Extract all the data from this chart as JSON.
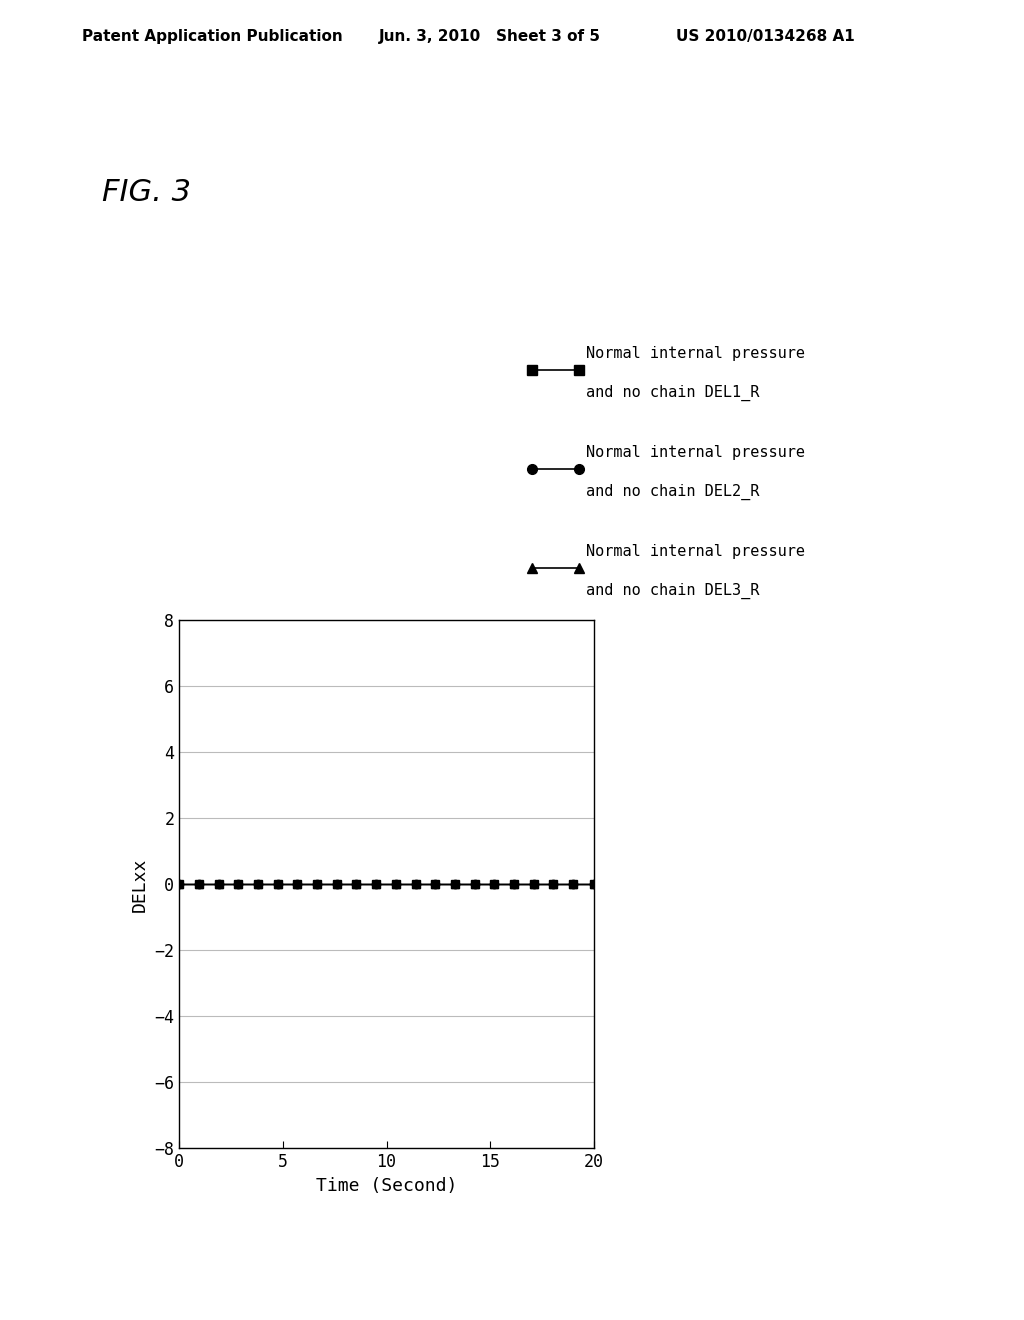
{
  "fig_label": "FIG. 3",
  "header_left": "Patent Application Publication",
  "header_mid": "Jun. 3, 2010   Sheet 3 of 5",
  "header_right": "US 2010/0134268 A1",
  "xlabel": "Time (Second)",
  "ylabel": "DELxx",
  "xlim": [
    0,
    20
  ],
  "ylim": [
    -8,
    8
  ],
  "xticks": [
    0,
    5,
    10,
    15,
    20
  ],
  "yticks": [
    -8,
    -6,
    -4,
    -2,
    0,
    2,
    4,
    6,
    8
  ],
  "series": [
    {
      "label_line1": "Normal internal pressure",
      "label_line2": "and no chain DEL1_R",
      "color": "#000000",
      "marker": "s",
      "x": [
        0,
        0.95,
        1.9,
        2.85,
        3.8,
        4.75,
        5.7,
        6.65,
        7.6,
        8.55,
        9.5,
        10.45,
        11.4,
        12.35,
        13.3,
        14.25,
        15.2,
        16.15,
        17.1,
        18.05,
        19.0,
        20.0
      ],
      "y": [
        0,
        0,
        0,
        0,
        0,
        0,
        0,
        0,
        0,
        0,
        0,
        0,
        0,
        0,
        0,
        0,
        0,
        0,
        0,
        0,
        0,
        0
      ]
    },
    {
      "label_line1": "Normal internal pressure",
      "label_line2": "and no chain DEL2_R",
      "color": "#000000",
      "marker": "o",
      "x": [
        0,
        0.95,
        1.9,
        2.85,
        3.8,
        4.75,
        5.7,
        6.65,
        7.6,
        8.55,
        9.5,
        10.45,
        11.4,
        12.35,
        13.3,
        14.25,
        15.2,
        16.15,
        17.1,
        18.05,
        19.0,
        20.0
      ],
      "y": [
        0,
        0,
        0,
        0,
        0,
        0,
        0,
        0,
        0,
        0,
        0,
        0,
        0,
        0,
        0,
        0,
        0,
        0,
        0,
        0,
        0,
        0
      ]
    },
    {
      "label_line1": "Normal internal pressure",
      "label_line2": "and no chain DEL3_R",
      "color": "#000000",
      "marker": "^",
      "x": [
        0,
        0.95,
        1.9,
        2.85,
        3.8,
        4.75,
        5.7,
        6.65,
        7.6,
        8.55,
        9.5,
        10.45,
        11.4,
        12.35,
        13.3,
        14.25,
        15.2,
        16.15,
        17.1,
        18.05,
        19.0,
        20.0
      ],
      "y": [
        0,
        0,
        0,
        0,
        0,
        0,
        0,
        0,
        0,
        0,
        0,
        0,
        0,
        0,
        0,
        0,
        0,
        0,
        0,
        0,
        0,
        0
      ]
    }
  ],
  "background_color": "#ffffff",
  "font_family": "monospace",
  "header_fontsize": 11,
  "fig_label_fontsize": 22,
  "axis_label_fontsize": 13,
  "tick_fontsize": 12,
  "legend_fontsize": 11
}
